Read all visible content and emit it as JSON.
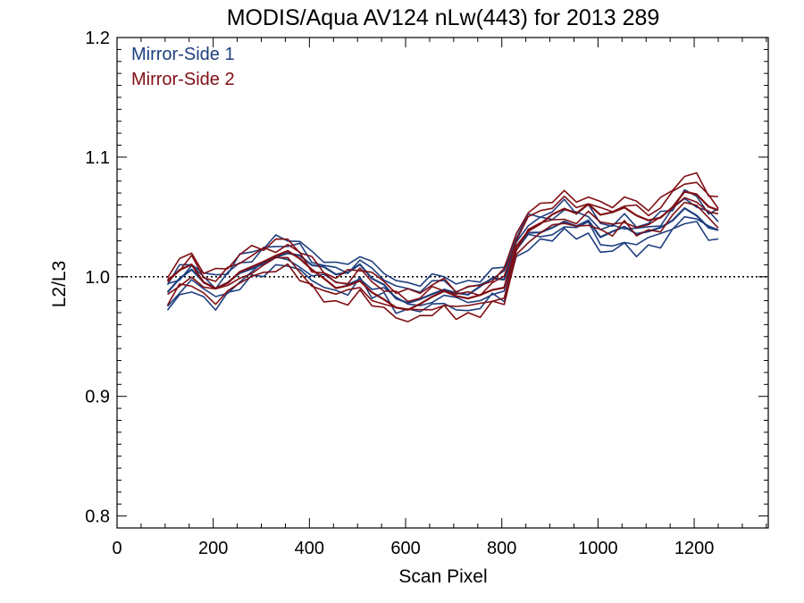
{
  "chart_data": {
    "type": "line",
    "title": "MODIS/Aqua AV124 nLw(443) for 2013 289",
    "xlabel": "Scan Pixel",
    "ylabel": "L2/L3",
    "xlim": [
      0,
      1354
    ],
    "ylim": [
      0.79,
      1.2
    ],
    "xticks": [
      0,
      200,
      400,
      600,
      800,
      1000,
      1200
    ],
    "yticks": [
      0.8,
      0.9,
      1.0,
      1.1,
      1.2
    ],
    "ytick_labels": [
      "0.8",
      "0.9",
      "1.0",
      "1.1",
      "1.2"
    ],
    "reference_line": {
      "y": 1.0,
      "style": "dotted"
    },
    "legend": {
      "placement": "top-left"
    },
    "x": [
      105,
      130,
      155,
      180,
      205,
      230,
      255,
      280,
      305,
      330,
      355,
      380,
      405,
      430,
      455,
      480,
      505,
      530,
      555,
      580,
      605,
      630,
      655,
      680,
      705,
      730,
      755,
      780,
      805,
      830,
      855,
      880,
      905,
      930,
      955,
      980,
      1005,
      1030,
      1055,
      1080,
      1105,
      1130,
      1155,
      1180,
      1205,
      1230,
      1250
    ],
    "series": [
      {
        "name": "Mirror-Side 1",
        "color": "#1f3f7f",
        "values": [
          0.985,
          0.995,
          1.002,
          0.992,
          0.988,
          0.995,
          1.005,
          1.01,
          1.015,
          1.02,
          1.022,
          1.018,
          1.008,
          1.005,
          0.998,
          1.0,
          1.008,
          0.998,
          0.995,
          0.985,
          0.982,
          0.985,
          0.988,
          0.99,
          0.985,
          0.982,
          0.988,
          0.995,
          0.995,
          1.025,
          1.038,
          1.04,
          1.045,
          1.05,
          1.045,
          1.048,
          1.032,
          1.035,
          1.038,
          1.032,
          1.035,
          1.04,
          1.048,
          1.06,
          1.055,
          1.045,
          1.042
        ]
      },
      {
        "name": "Mirror-Side 2",
        "color": "#7f0f14",
        "values": [
          0.992,
          1.002,
          1.008,
          0.995,
          0.992,
          0.998,
          1.008,
          1.012,
          1.015,
          1.018,
          1.02,
          1.012,
          1.002,
          0.995,
          0.988,
          0.992,
          0.998,
          0.99,
          0.985,
          0.978,
          0.975,
          0.978,
          0.982,
          0.985,
          0.98,
          0.978,
          0.982,
          0.988,
          0.992,
          1.028,
          1.042,
          1.048,
          1.055,
          1.058,
          1.052,
          1.058,
          1.048,
          1.05,
          1.055,
          1.05,
          1.048,
          1.052,
          1.062,
          1.075,
          1.072,
          1.06,
          1.055
        ]
      }
    ]
  }
}
